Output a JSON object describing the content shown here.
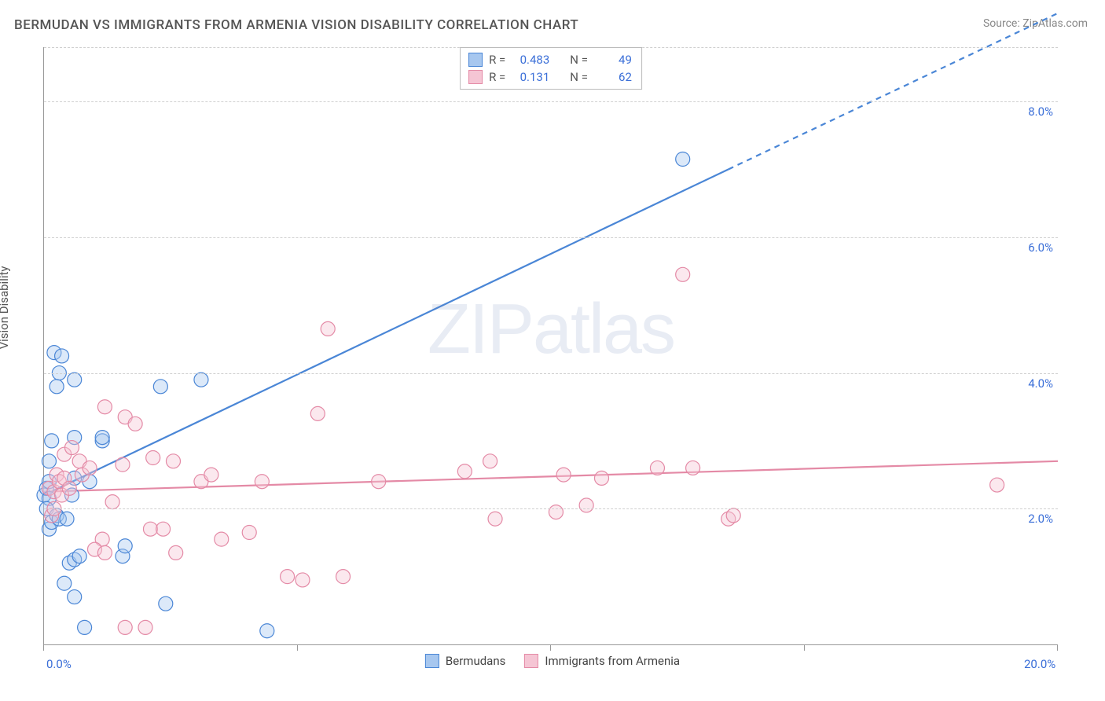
{
  "title": "BERMUDAN VS IMMIGRANTS FROM ARMENIA VISION DISABILITY CORRELATION CHART",
  "source": "Source: ZipAtlas.com",
  "y_axis_label": "Vision Disability",
  "watermark_parts": [
    "ZIP",
    "atlas"
  ],
  "chart": {
    "type": "scatter",
    "xlim": [
      0,
      20
    ],
    "ylim": [
      0,
      8.8
    ],
    "x_ticks": [
      0,
      5,
      10,
      15,
      20
    ],
    "x_tick_labels": [
      "0.0%",
      "",
      "",
      "",
      "20.0%"
    ],
    "y_gridlines": [
      2.0,
      4.0,
      6.0,
      8.0
    ],
    "y_tick_labels": [
      "2.0%",
      "4.0%",
      "6.0%",
      "8.0%"
    ],
    "background_color": "#ffffff",
    "grid_color": "#d0d0d0",
    "axis_color": "#999999",
    "marker_radius": 9,
    "marker_border_width": 1.2,
    "marker_fill_opacity": 0.25,
    "regression_line_width": 2.2
  },
  "series": [
    {
      "name": "Bermudans",
      "color_border": "#4a86d6",
      "color_fill": "#a7c7ef",
      "R": "0.483",
      "N": "49",
      "regression": {
        "x1": 0,
        "y1": 2.2,
        "x2_solid": 13.5,
        "y2_solid": 7.0,
        "x2_dash": 20,
        "y2_dash": 9.3
      },
      "points": [
        [
          0.0,
          2.2
        ],
        [
          0.05,
          2.3
        ],
        [
          0.1,
          2.4
        ],
        [
          0.1,
          2.15
        ],
        [
          0.15,
          3.0
        ],
        [
          0.1,
          2.7
        ],
        [
          0.05,
          2.0
        ],
        [
          0.2,
          4.3
        ],
        [
          0.35,
          4.25
        ],
        [
          0.25,
          3.8
        ],
        [
          0.3,
          4.0
        ],
        [
          0.6,
          3.9
        ],
        [
          0.6,
          3.05
        ],
        [
          0.6,
          2.45
        ],
        [
          1.15,
          3.0
        ],
        [
          1.15,
          3.05
        ],
        [
          2.3,
          3.8
        ],
        [
          3.1,
          3.9
        ],
        [
          0.1,
          1.7
        ],
        [
          0.15,
          1.8
        ],
        [
          0.25,
          1.9
        ],
        [
          0.3,
          1.85
        ],
        [
          0.45,
          1.85
        ],
        [
          0.55,
          2.2
        ],
        [
          0.9,
          2.4
        ],
        [
          0.5,
          1.2
        ],
        [
          0.6,
          1.25
        ],
        [
          0.7,
          1.3
        ],
        [
          1.55,
          1.3
        ],
        [
          1.6,
          1.45
        ],
        [
          0.4,
          0.9
        ],
        [
          0.6,
          0.7
        ],
        [
          2.4,
          0.6
        ],
        [
          0.8,
          0.25
        ],
        [
          4.4,
          0.2
        ],
        [
          12.6,
          7.15
        ]
      ]
    },
    {
      "name": "Immigrants from Armenia",
      "color_border": "#e48aa6",
      "color_fill": "#f5c5d4",
      "R": "0.131",
      "N": "62",
      "regression": {
        "x1": 0,
        "y1": 2.25,
        "x2_solid": 20,
        "y2_solid": 2.7,
        "x2_dash": 20,
        "y2_dash": 2.7
      },
      "points": [
        [
          0.1,
          2.3
        ],
        [
          0.2,
          2.25
        ],
        [
          0.25,
          2.5
        ],
        [
          0.3,
          2.4
        ],
        [
          0.35,
          2.2
        ],
        [
          0.4,
          2.45
        ],
        [
          0.5,
          2.3
        ],
        [
          0.4,
          2.8
        ],
        [
          0.55,
          2.9
        ],
        [
          0.7,
          2.7
        ],
        [
          0.75,
          2.5
        ],
        [
          0.9,
          2.6
        ],
        [
          1.2,
          3.5
        ],
        [
          1.6,
          3.35
        ],
        [
          1.15,
          1.55
        ],
        [
          1.35,
          2.1
        ],
        [
          1.55,
          2.65
        ],
        [
          1.8,
          3.25
        ],
        [
          2.1,
          1.7
        ],
        [
          2.15,
          2.75
        ],
        [
          2.55,
          2.7
        ],
        [
          2.35,
          1.7
        ],
        [
          2.6,
          1.35
        ],
        [
          3.1,
          2.4
        ],
        [
          3.3,
          2.5
        ],
        [
          3.5,
          1.55
        ],
        [
          4.05,
          1.65
        ],
        [
          4.3,
          2.4
        ],
        [
          4.8,
          1.0
        ],
        [
          5.1,
          0.95
        ],
        [
          5.4,
          3.4
        ],
        [
          5.6,
          4.65
        ],
        [
          5.9,
          1.0
        ],
        [
          6.6,
          2.4
        ],
        [
          8.3,
          2.55
        ],
        [
          8.8,
          2.7
        ],
        [
          8.9,
          1.85
        ],
        [
          10.1,
          1.95
        ],
        [
          10.25,
          2.5
        ],
        [
          10.7,
          2.05
        ],
        [
          11.0,
          2.45
        ],
        [
          12.1,
          2.6
        ],
        [
          12.6,
          5.45
        ],
        [
          12.8,
          2.6
        ],
        [
          13.5,
          1.85
        ],
        [
          13.6,
          1.9
        ],
        [
          18.8,
          2.35
        ],
        [
          1.0,
          1.4
        ],
        [
          1.2,
          1.35
        ],
        [
          1.6,
          0.25
        ],
        [
          2.0,
          0.25
        ],
        [
          0.15,
          1.9
        ],
        [
          0.2,
          2.0
        ]
      ]
    }
  ],
  "stats_box": {
    "rows": [
      {
        "series_index": 0,
        "R_label": "R =",
        "N_label": "N ="
      },
      {
        "series_index": 1,
        "R_label": "R =",
        "N_label": "N ="
      }
    ]
  },
  "bottom_legend": {
    "items": [
      {
        "series_index": 0
      },
      {
        "series_index": 1
      }
    ]
  }
}
